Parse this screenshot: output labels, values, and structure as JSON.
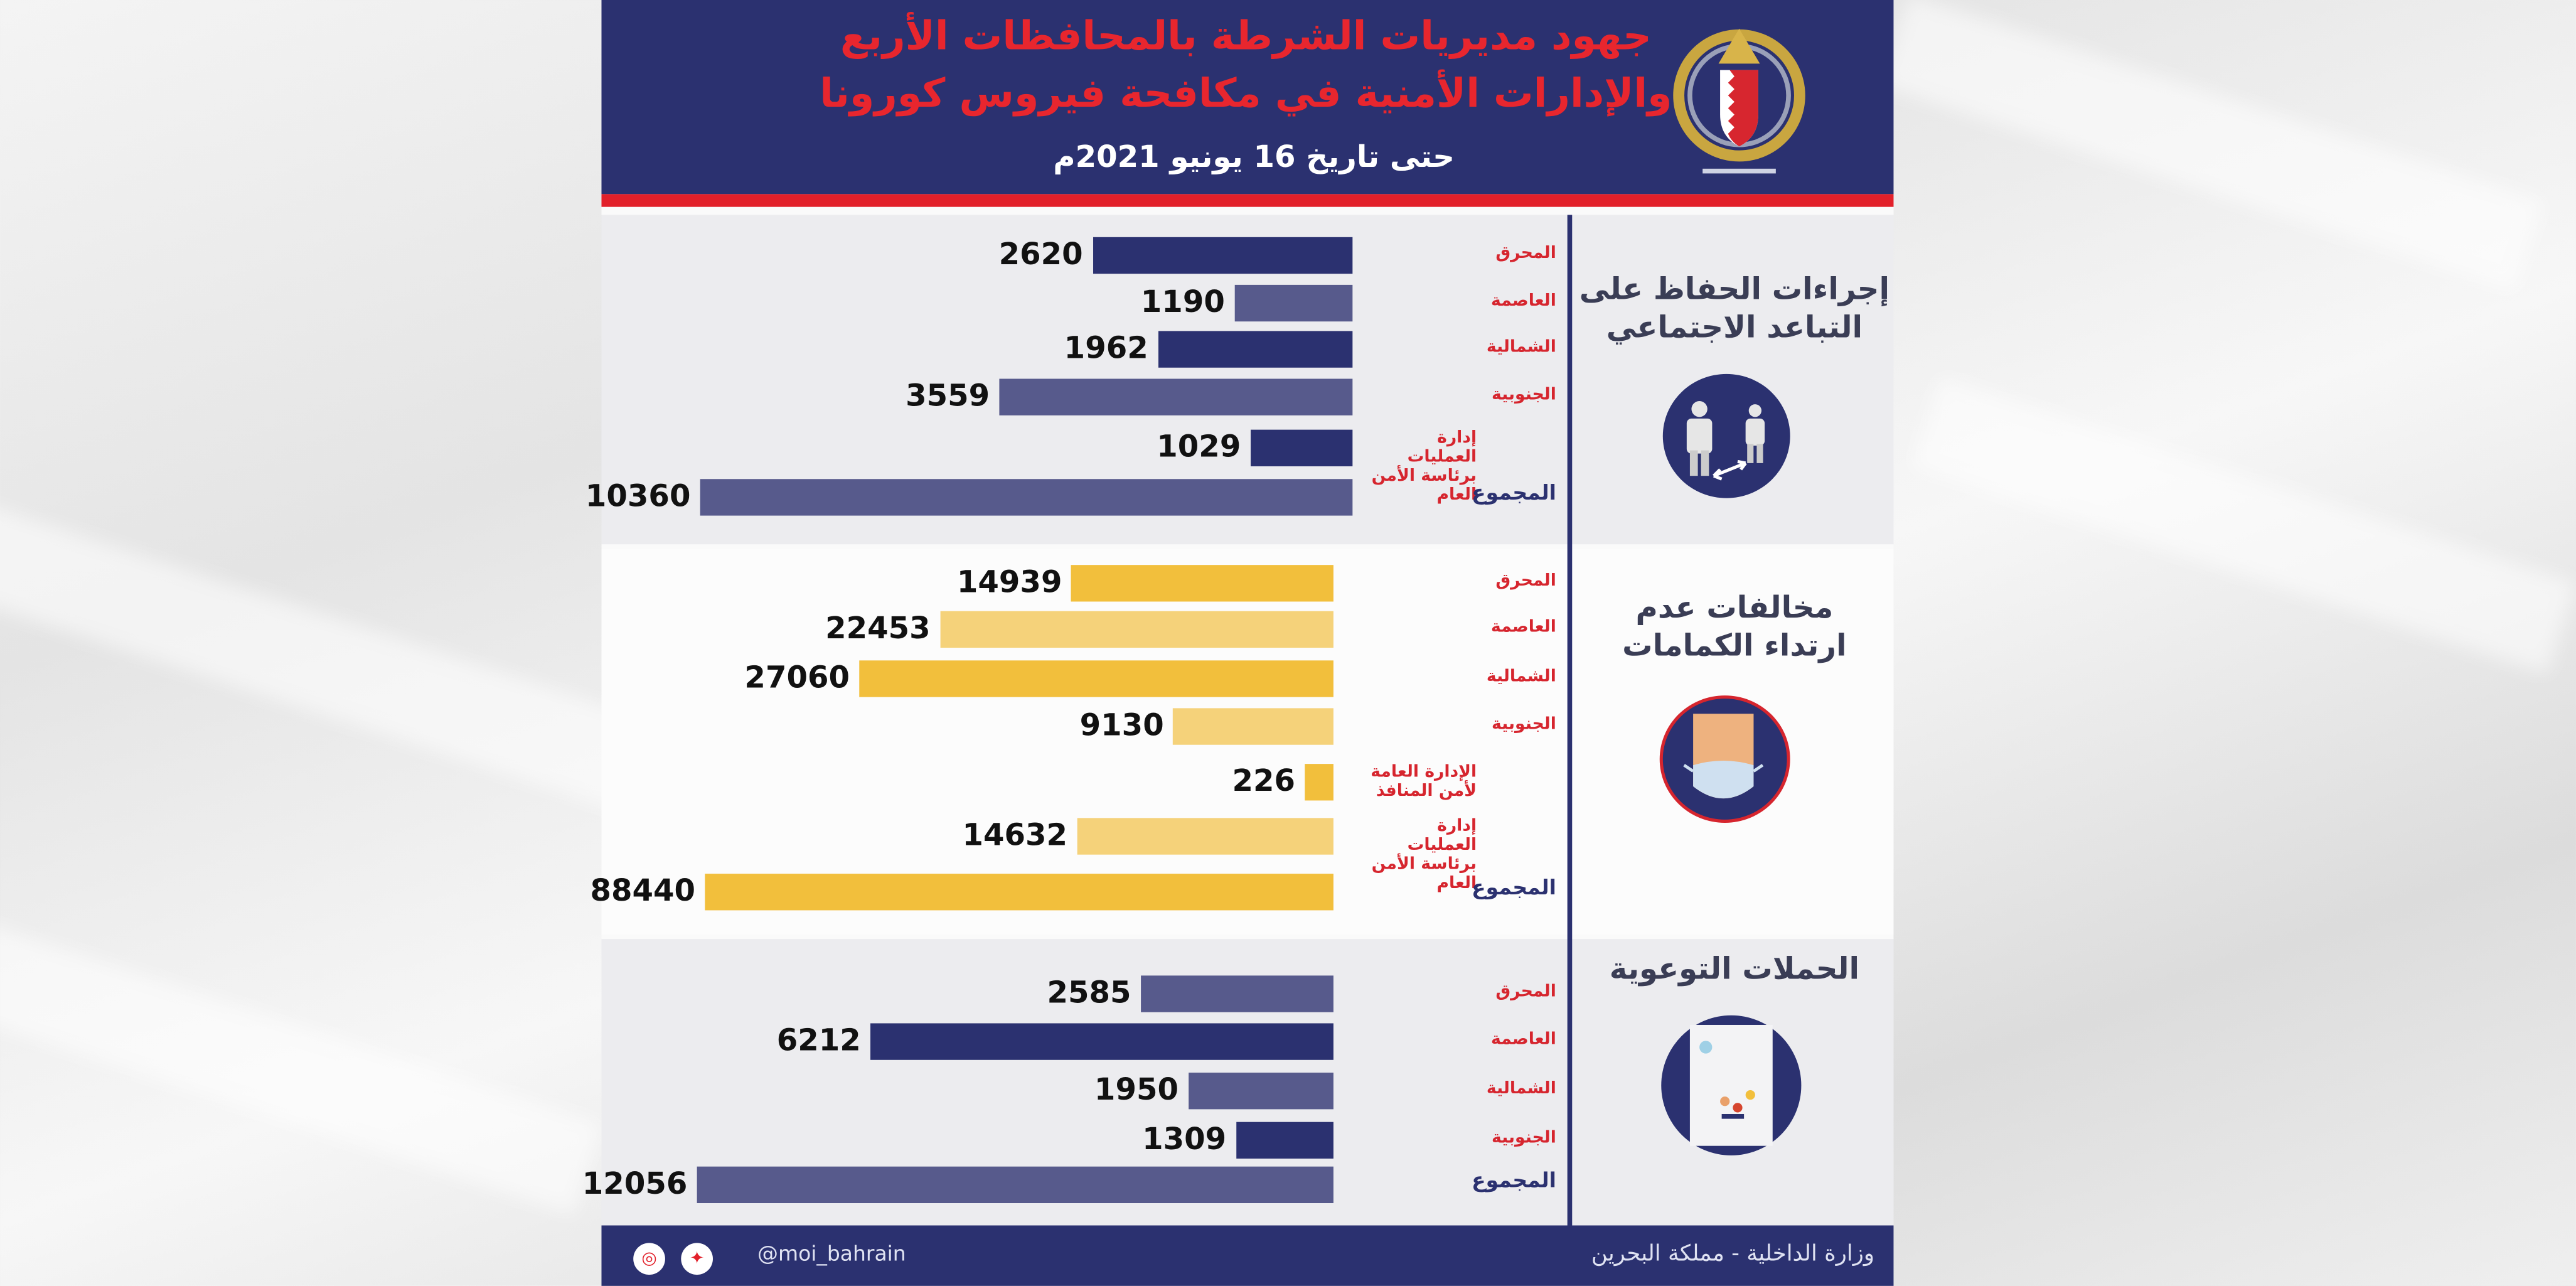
{
  "header": {
    "title_line1": "جهود مديريات الشرطة بالمحافظات الأربع",
    "title_line2": "والإدارات الأمنية في مكافحة فيروس كورونا",
    "date": "حتى تاريخ 16 يونيو 2021م",
    "logo_caption": "وزارة الداخلية"
  },
  "colors": {
    "navy": "#2b3170",
    "navy_light": "#575a8c",
    "yellow": "#f2bf3c",
    "yellow_light": "#f5d27a",
    "red": "#e2202a"
  },
  "chart_data": [
    {
      "type": "bar",
      "title": "إجراءات الحفاظ على التباعد الاجتماعي",
      "categories": [
        "المحرق",
        "العاصمة",
        "الشمالية",
        "الجنوبية",
        "إدارة العمليات برئاسة الأمن العام",
        "المجموع"
      ],
      "values": [
        2620,
        1190,
        1962,
        3559,
        1029,
        10360
      ],
      "tones": [
        "dark",
        "light",
        "dark",
        "light",
        "dark",
        "light"
      ]
    },
    {
      "type": "bar",
      "title": "مخالفات عدم ارتداء الكمامات",
      "categories": [
        "المحرق",
        "العاصمة",
        "الشمالية",
        "الجنوبية",
        "الإدارة العامة لأمن المنافذ",
        "إدارة العمليات برئاسة الأمن العام",
        "المجموع"
      ],
      "values": [
        14939,
        22453,
        27060,
        9130,
        226,
        14632,
        88440
      ],
      "tones": [
        "dark",
        "light",
        "dark",
        "light",
        "dark",
        "light",
        "dark"
      ]
    },
    {
      "type": "bar",
      "title": "الحملات التوعوية",
      "categories": [
        "المحرق",
        "العاصمة",
        "الشمالية",
        "الجنوبية",
        "المجموع"
      ],
      "values": [
        2585,
        6212,
        1950,
        1309,
        12056
      ],
      "tones": [
        "light",
        "dark",
        "light",
        "dark",
        "light"
      ]
    }
  ],
  "panels": [
    {
      "title_line1": "إجراءات الحفاظ على",
      "title_line2": "التباعد الاجتماعي",
      "icon": "social-distancing-icon"
    },
    {
      "title_line1": "مخالفات عدم",
      "title_line2": "ارتداء الكمامات",
      "icon": "face-mask-icon"
    },
    {
      "title_line1": "الحملات التوعوية",
      "title_line2": "",
      "icon": "awareness-poster-icon"
    }
  ],
  "footer": {
    "handle": "@moi_bahrain",
    "ministry": "وزارة الداخلية - مملكة البحرين",
    "social": [
      "instagram-icon",
      "twitter-icon"
    ]
  }
}
